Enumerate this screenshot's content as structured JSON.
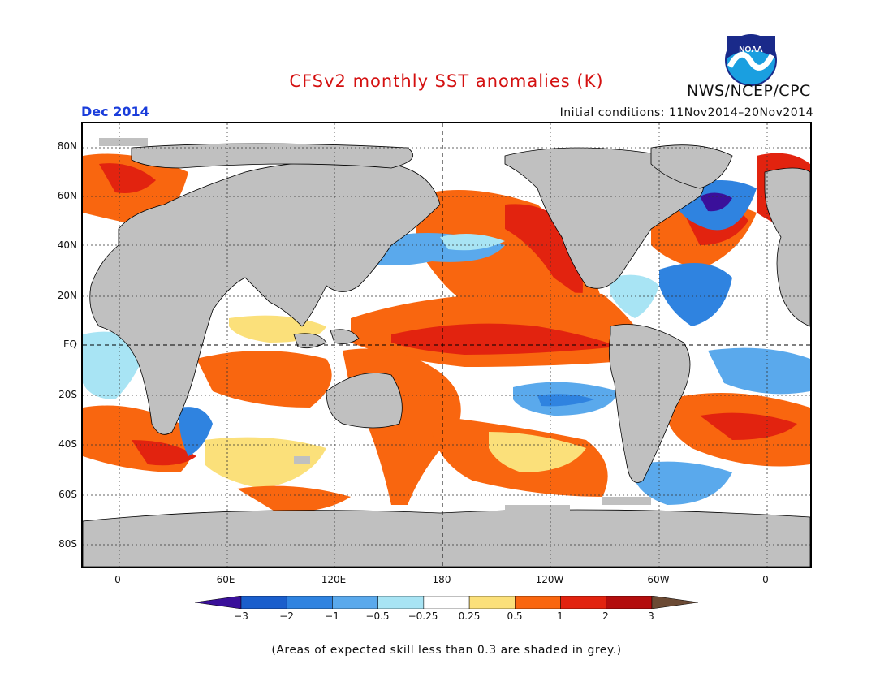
{
  "title": "CFSv2 monthly SST anomalies (K)",
  "organization": "NWS/NCEP/CPC",
  "logo_text": "NOAA",
  "valid_month": "Dec 2014",
  "initial_conditions": "Initial conditions: 11Nov2014–20Nov2014",
  "lat_labels": [
    "80N",
    "60N",
    "40N",
    "20N",
    "EQ",
    "20S",
    "40S",
    "60S",
    "80S"
  ],
  "lon_labels": [
    "0",
    "60E",
    "120E",
    "180",
    "120W",
    "60W",
    "0"
  ],
  "colorbar": {
    "ticks": [
      "−3",
      "−2",
      "−1",
      "−0.5",
      "−0.25",
      "0.25",
      "0.5",
      "1",
      "2",
      "3"
    ],
    "colors": [
      "#3a109a",
      "#1a5ecc",
      "#2f83e0",
      "#5aa9ec",
      "#a8e4f4",
      "#ffffff",
      "#fbe07a",
      "#f9660f",
      "#e2230f",
      "#b30d0d",
      "#6b4a34"
    ]
  },
  "land_color": "#c0c0c0",
  "footnote": "(Areas of expected skill less than 0.3 are shaded in grey.)"
}
